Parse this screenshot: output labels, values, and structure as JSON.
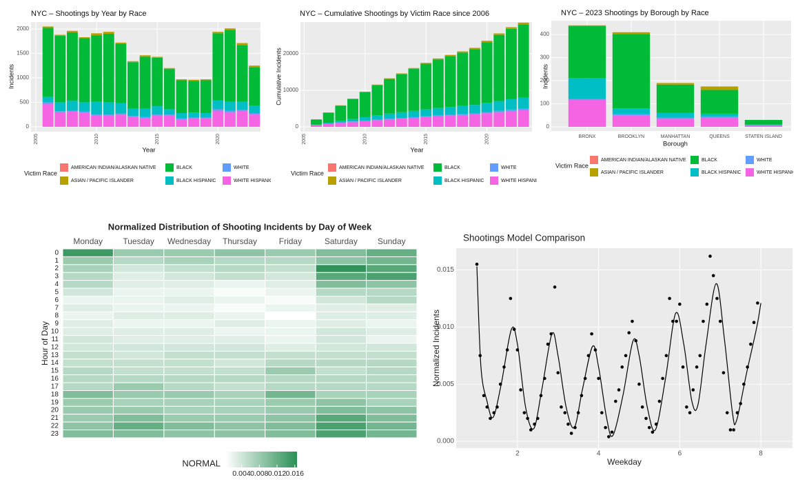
{
  "chart_data": [
    {
      "type": "bar",
      "stacked": true,
      "title": "NYC –  Shootings by Year by Race",
      "xlabel": "Year",
      "ylabel": "Incidents",
      "legend_title": "Victim Race",
      "grid": true,
      "x": [
        2006,
        2007,
        2008,
        2009,
        2010,
        2011,
        2012,
        2013,
        2014,
        2015,
        2016,
        2017,
        2018,
        2019,
        2020,
        2021,
        2022,
        2023
      ],
      "xlim": [
        2004.6,
        2023.5
      ],
      "xticks": [
        2005,
        2010,
        2015,
        2020
      ],
      "ylim": [
        -100,
        2140
      ],
      "yticks": [
        0,
        500,
        1000,
        1500,
        2000
      ],
      "series": [
        {
          "name": "AMERICAN INDIAN/ALASKAN NATIVE",
          "color": "#F8766D",
          "values": [
            0,
            0,
            0,
            0,
            0,
            0,
            0,
            0,
            0,
            0,
            0,
            0,
            0,
            0,
            0,
            0,
            0,
            0
          ]
        },
        {
          "name": "ASIAN / PACIFIC ISLANDER",
          "color": "#B79F00",
          "values": [
            30,
            20,
            30,
            20,
            40,
            40,
            20,
            20,
            30,
            20,
            20,
            20,
            20,
            20,
            30,
            30,
            40,
            30
          ]
        },
        {
          "name": "BLACK",
          "color": "#00BA38",
          "values": [
            1410,
            1360,
            1400,
            1310,
            1360,
            1400,
            1220,
            950,
            1060,
            990,
            820,
            670,
            650,
            670,
            1370,
            1460,
            1160,
            790
          ]
        },
        {
          "name": "BLACK HISPANIC",
          "color": "#00BFC4",
          "values": [
            110,
            180,
            200,
            190,
            260,
            250,
            210,
            150,
            170,
            170,
            110,
            110,
            100,
            90,
            180,
            190,
            160,
            150
          ]
        },
        {
          "name": "WHITE",
          "color": "#619CFF",
          "values": [
            30,
            20,
            20,
            20,
            20,
            20,
            20,
            20,
            20,
            20,
            20,
            20,
            20,
            20,
            30,
            30,
            20,
            30
          ]
        },
        {
          "name": "WHITE HISPANIC",
          "color": "#F564E3",
          "values": [
            470,
            300,
            310,
            290,
            230,
            230,
            250,
            200,
            180,
            230,
            230,
            150,
            170,
            170,
            330,
            300,
            330,
            250
          ]
        }
      ]
    },
    {
      "type": "bar",
      "stacked": true,
      "title": "NYC – Cumulative Shootings by Victim Race since 2006",
      "xlabel": "Year",
      "ylabel": "Cumulative Incidents",
      "legend_title": "Victim Race",
      "grid": true,
      "x": [
        2006,
        2007,
        2008,
        2009,
        2010,
        2011,
        2012,
        2013,
        2014,
        2015,
        2016,
        2017,
        2018,
        2019,
        2020,
        2021,
        2022,
        2023
      ],
      "xlim": [
        2004.7,
        2023.7
      ],
      "xticks": [
        2005,
        2010,
        2015,
        2020
      ],
      "ylim": [
        -1320,
        28680
      ],
      "yticks": [
        0,
        10000,
        20000
      ],
      "series": [
        {
          "name": "AMERICAN INDIAN/ALASKAN NATIVE",
          "color": "#F8766D",
          "values": [
            0,
            0,
            0,
            0,
            0,
            0,
            0,
            0,
            0,
            0,
            0,
            0,
            0,
            0,
            0,
            0,
            0,
            0
          ]
        },
        {
          "name": "ASIAN / PACIFIC ISLANDER",
          "color": "#B79F00",
          "values": [
            30,
            50,
            80,
            100,
            140,
            180,
            200,
            220,
            250,
            270,
            290,
            310,
            330,
            350,
            380,
            410,
            450,
            480
          ]
        },
        {
          "name": "BLACK",
          "color": "#00BA38",
          "values": [
            1410,
            2770,
            4170,
            5480,
            6840,
            8240,
            9460,
            10410,
            11470,
            12460,
            13280,
            13950,
            14600,
            15270,
            16640,
            18100,
            19260,
            20050
          ]
        },
        {
          "name": "BLACK HISPANIC",
          "color": "#00BFC4",
          "values": [
            110,
            290,
            490,
            680,
            940,
            1190,
            1400,
            1550,
            1720,
            1890,
            2000,
            2110,
            2210,
            2300,
            2480,
            2670,
            2830,
            2980
          ]
        },
        {
          "name": "WHITE",
          "color": "#619CFF",
          "values": [
            30,
            50,
            70,
            90,
            110,
            130,
            150,
            170,
            190,
            210,
            230,
            250,
            270,
            290,
            320,
            350,
            370,
            400
          ]
        },
        {
          "name": "WHITE HISPANIC",
          "color": "#F564E3",
          "values": [
            470,
            770,
            1080,
            1370,
            1600,
            1830,
            2080,
            2280,
            2460,
            2690,
            2920,
            3070,
            3240,
            3410,
            3740,
            4040,
            4370,
            4620
          ]
        }
      ]
    },
    {
      "type": "bar",
      "stacked": true,
      "title": "NYC – 2023 Shootings by Borough by Race",
      "xlabel": "Borough",
      "ylabel": "Incidents",
      "legend_title": "Victim Race",
      "grid": true,
      "categories": [
        "BRONX",
        "BROOKLYN",
        "MANHATTAN",
        "QUEENS",
        "STATEN ISLAND"
      ],
      "ylim": [
        -18,
        460
      ],
      "yticks": [
        0,
        100,
        200,
        300,
        400
      ],
      "series": [
        {
          "name": "AMERICAN INDIAN/ALASKAN NATIVE",
          "color": "#F8766D",
          "values": [
            0,
            0,
            0,
            0,
            0
          ]
        },
        {
          "name": "ASIAN / PACIFIC ISLANDER",
          "color": "#B79F00",
          "values": [
            4,
            8,
            7,
            15,
            0
          ]
        },
        {
          "name": "BLACK",
          "color": "#00BA38",
          "values": [
            225,
            322,
            123,
            103,
            20
          ]
        },
        {
          "name": "BLACK HISPANIC",
          "color": "#00BFC4",
          "values": [
            90,
            25,
            20,
            12,
            3
          ]
        },
        {
          "name": "WHITE",
          "color": "#619CFF",
          "values": [
            3,
            5,
            5,
            5,
            2
          ]
        },
        {
          "name": "WHITE HISPANIC",
          "color": "#F564E3",
          "values": [
            118,
            50,
            35,
            40,
            5
          ]
        }
      ]
    },
    {
      "type": "heatmap",
      "title": "Normalized Distribution of Shooting Incidents by Day of Week",
      "ylabel": "Hour of Day",
      "legend_title": "NORMAL",
      "categories": [
        "Monday",
        "Tuesday",
        "Wednesday",
        "Thursday",
        "Friday",
        "Saturday",
        "Sunday"
      ],
      "y_categories": [
        0,
        1,
        2,
        3,
        4,
        5,
        6,
        7,
        8,
        9,
        10,
        11,
        12,
        13,
        14,
        15,
        16,
        17,
        18,
        19,
        20,
        21,
        22,
        23
      ],
      "colors": [
        "#ffffff",
        "#2a9055"
      ],
      "clim": [
        0.0005,
        0.0165
      ],
      "cticks": [
        0.004,
        0.008,
        0.012,
        0.016
      ],
      "values": [
        [
          0.015,
          0.008,
          0.008,
          0.009,
          0.008,
          0.01,
          0.012
        ],
        [
          0.008,
          0.006,
          0.007,
          0.006,
          0.006,
          0.009,
          0.011
        ],
        [
          0.007,
          0.004,
          0.005,
          0.006,
          0.005,
          0.016,
          0.013
        ],
        [
          0.006,
          0.003,
          0.004,
          0.005,
          0.004,
          0.013,
          0.014
        ],
        [
          0.006,
          0.003,
          0.003,
          0.002,
          0.003,
          0.01,
          0.009
        ],
        [
          0.004,
          0.002,
          0.002,
          0.001,
          0.002,
          0.006,
          0.006
        ],
        [
          0.002,
          0.002,
          0.003,
          0.002,
          0.001,
          0.004,
          0.006
        ],
        [
          0.003,
          0.002,
          0.002,
          0.001,
          0.002,
          0.003,
          0.003
        ],
        [
          0.002,
          0.003,
          0.003,
          0.002,
          0.0005,
          0.003,
          0.003
        ],
        [
          0.003,
          0.002,
          0.002,
          0.003,
          0.002,
          0.003,
          0.002
        ],
        [
          0.003,
          0.003,
          0.003,
          0.002,
          0.002,
          0.004,
          0.003
        ],
        [
          0.004,
          0.003,
          0.003,
          0.003,
          0.002,
          0.004,
          0.002
        ],
        [
          0.004,
          0.004,
          0.004,
          0.004,
          0.003,
          0.004,
          0.004
        ],
        [
          0.005,
          0.004,
          0.005,
          0.005,
          0.005,
          0.005,
          0.005
        ],
        [
          0.005,
          0.005,
          0.005,
          0.004,
          0.006,
          0.006,
          0.006
        ],
        [
          0.006,
          0.005,
          0.005,
          0.005,
          0.008,
          0.005,
          0.006
        ],
        [
          0.006,
          0.006,
          0.006,
          0.006,
          0.006,
          0.006,
          0.006
        ],
        [
          0.006,
          0.008,
          0.006,
          0.005,
          0.006,
          0.006,
          0.006
        ],
        [
          0.01,
          0.008,
          0.008,
          0.007,
          0.011,
          0.007,
          0.007
        ],
        [
          0.008,
          0.007,
          0.007,
          0.007,
          0.008,
          0.009,
          0.007
        ],
        [
          0.008,
          0.008,
          0.007,
          0.007,
          0.008,
          0.01,
          0.009
        ],
        [
          0.008,
          0.01,
          0.008,
          0.008,
          0.009,
          0.013,
          0.01
        ],
        [
          0.009,
          0.012,
          0.01,
          0.009,
          0.01,
          0.014,
          0.011
        ],
        [
          0.01,
          0.01,
          0.009,
          0.009,
          0.01,
          0.014,
          0.011
        ]
      ]
    },
    {
      "type": "scatter",
      "title": "Shootings Model Comparison",
      "xlabel": "Weekday",
      "ylabel": "Normalized Incidents",
      "grid": true,
      "xlim": [
        0.49,
        8.78
      ],
      "xticks": [
        2,
        4,
        6,
        8
      ],
      "ylim": [
        -0.0006,
        0.0169
      ],
      "yticks": [
        {
          "value": 0,
          "label": "0.000"
        },
        {
          "value": 0.005,
          "label": "0.005"
        },
        {
          "value": 0.01,
          "label": "0.010"
        },
        {
          "value": 0.015,
          "label": "0.015"
        }
      ],
      "series": [
        {
          "type": "scatter",
          "color": "#000000",
          "x": [
            1,
            1.08,
            1.17,
            1.25,
            1.33,
            1.42,
            1.5,
            1.58,
            1.67,
            1.75,
            1.83,
            1.92,
            2,
            2.08,
            2.17,
            2.25,
            2.33,
            2.42,
            2.5,
            2.58,
            2.67,
            2.75,
            2.83,
            2.92,
            3,
            3.08,
            3.17,
            3.25,
            3.33,
            3.42,
            3.5,
            3.58,
            3.67,
            3.75,
            3.83,
            3.92,
            4,
            4.08,
            4.17,
            4.25,
            4.33,
            4.42,
            4.5,
            4.58,
            4.67,
            4.75,
            4.83,
            4.92,
            5,
            5.08,
            5.17,
            5.25,
            5.33,
            5.42,
            5.5,
            5.58,
            5.67,
            5.75,
            5.83,
            5.92,
            6,
            6.08,
            6.17,
            6.25,
            6.33,
            6.42,
            6.5,
            6.58,
            6.67,
            6.75,
            6.83,
            6.92,
            7,
            7.08,
            7.17,
            7.25,
            7.33,
            7.42,
            7.5,
            7.58,
            7.67,
            7.75,
            7.83,
            7.92
          ],
          "values": [
            0.0155,
            0.0075,
            0.004,
            0.003,
            0.002,
            0.0025,
            0.003,
            0.005,
            0.0065,
            0.008,
            0.0125,
            0.0098,
            0.008,
            0.0045,
            0.0025,
            0.002,
            0.001,
            0.0015,
            0.002,
            0.004,
            0.0055,
            0.0085,
            0.0094,
            0.0135,
            0.006,
            0.003,
            0.0025,
            0.0015,
            0.0007,
            0.0012,
            0.0025,
            0.004,
            0.0055,
            0.0075,
            0.0094,
            0.008,
            0.0055,
            0.0025,
            0.0012,
            0.0004,
            0.0008,
            0.0035,
            0.0045,
            0.0065,
            0.0075,
            0.0095,
            0.0105,
            0.0088,
            0.005,
            0.003,
            0.002,
            0.0012,
            0.0008,
            0.0015,
            0.0035,
            0.0055,
            0.0075,
            0.0125,
            0.0105,
            0.0105,
            0.012,
            0.0065,
            0.003,
            0.0025,
            0.0045,
            0.0065,
            0.0075,
            0.0105,
            0.012,
            0.0162,
            0.0145,
            0.0125,
            0.0105,
            0.006,
            0.0025,
            0.001,
            0.001,
            0.0025,
            0.0033,
            0.005,
            0.0065,
            0.0085,
            0.0104,
            0.0121
          ]
        },
        {
          "type": "line",
          "color": "#000000",
          "x": [
            1,
            1.1,
            1.25,
            1.4,
            1.6,
            1.85,
            2,
            2.2,
            2.4,
            2.6,
            2.85,
            3,
            3.2,
            3.4,
            3.6,
            3.85,
            4,
            4.2,
            4.35,
            4.6,
            4.85,
            5,
            5.2,
            5.4,
            5.65,
            5.9,
            6.1,
            6.3,
            6.45,
            6.65,
            6.9,
            7.1,
            7.3,
            7.4,
            7.65,
            7.9,
            8
          ],
          "values": [
            0.0153,
            0.0065,
            0.0035,
            0.0021,
            0.005,
            0.0098,
            0.0085,
            0.003,
            0.0011,
            0.0045,
            0.0094,
            0.0075,
            0.003,
            0.0012,
            0.0045,
            0.0083,
            0.0065,
            0.002,
            0.0005,
            0.004,
            0.0088,
            0.0075,
            0.003,
            0.001,
            0.0055,
            0.0112,
            0.0085,
            0.0035,
            0.0032,
            0.0085,
            0.0138,
            0.009,
            0.0025,
            0.0018,
            0.006,
            0.01,
            0.0121
          ]
        }
      ]
    }
  ]
}
